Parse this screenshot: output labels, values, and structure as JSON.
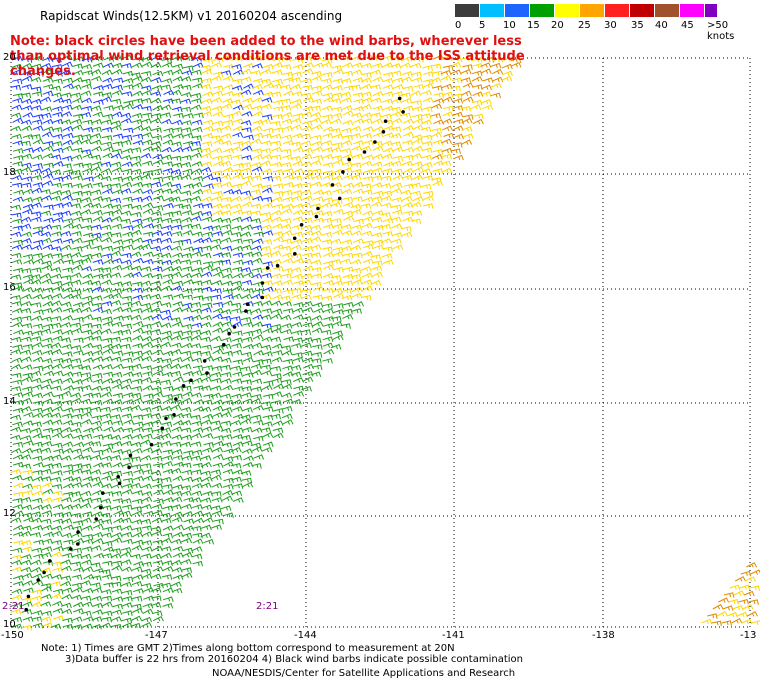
{
  "title": "Rapidscat Winds(12.5KM) v1 20160204 ascending",
  "note": "Note: black circles have been added to the wind barbs, wherever less than optimal wind retrieval conditions are met due to the ISS attitude changes.",
  "legend": {
    "labels": [
      "0",
      "5",
      "10",
      "15",
      "20",
      "25",
      "30",
      "35",
      "40",
      "45",
      ">50 knots"
    ],
    "colors": [
      "#3c3c3c",
      "#00bfff",
      "#1e64ff",
      "#00a000",
      "#ffff00",
      "#ffa500",
      "#ff2020",
      "#c00000",
      "#a0522d",
      "#ff00ff",
      "#8000c0"
    ]
  },
  "map": {
    "lat_labels": [
      "20",
      "18",
      "16",
      "14",
      "12",
      "10"
    ],
    "lon_labels": [
      "-150",
      "-147",
      "-144",
      "-141",
      "-138",
      "-13"
    ],
    "time_labels": [
      "2:21",
      "2:21"
    ]
  },
  "footer": {
    "line1": "Note: 1) Times are GMT 2)Times along bottom correspond to measurement at 20N",
    "line2": "3)Data buffer is 22 hrs from 20160204 4) Black wind barbs indicate possible contamination",
    "line3": "NOAA/NESDIS/Center for Satellite Applications and Research"
  }
}
